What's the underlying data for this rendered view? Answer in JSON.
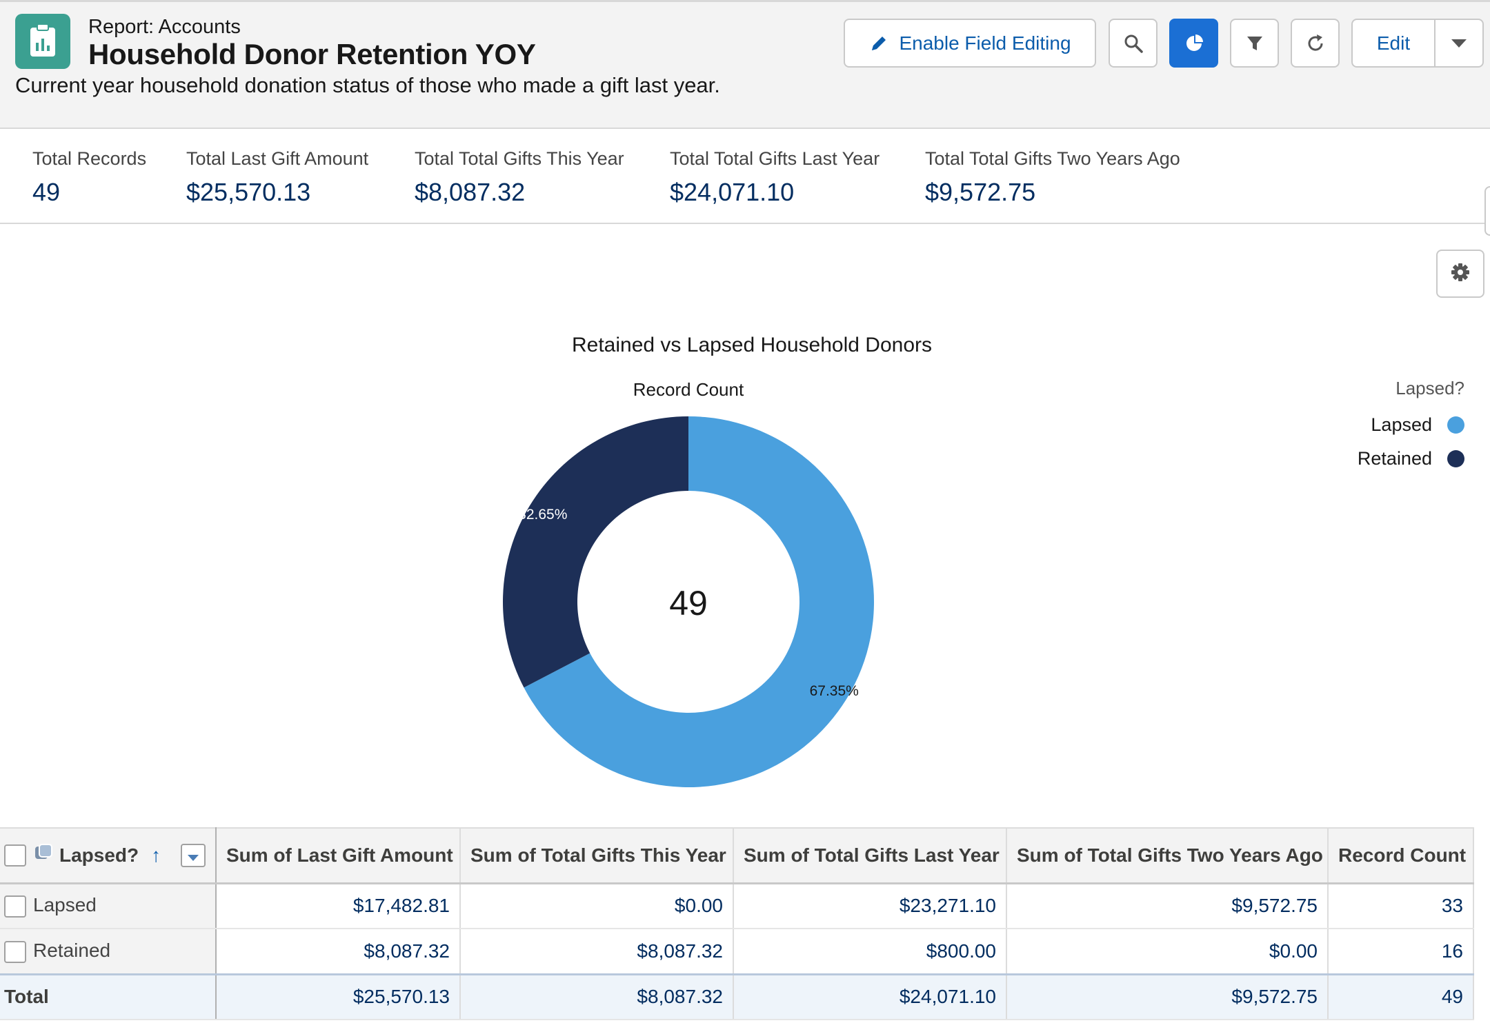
{
  "header": {
    "object_label": "Report: Accounts",
    "title": "Household Donor Retention YOY",
    "description": "Current year household donation status of those who made a gift last year.",
    "buttons": {
      "enable_field_editing": "Enable Field Editing",
      "edit": "Edit"
    },
    "icons": [
      "report-icon",
      "pencil-icon",
      "search-icon",
      "pie-chart-icon",
      "filter-icon",
      "refresh-icon",
      "chevron-down-icon",
      "gear-icon"
    ],
    "accent_color": "#1b6fd4"
  },
  "aggregates": [
    {
      "label": "Total Records",
      "value": "49"
    },
    {
      "label": "Total Last Gift Amount",
      "value": "$25,570.13"
    },
    {
      "label": "Total Total Gifts This Year",
      "value": "$8,087.32"
    },
    {
      "label": "Total Total Gifts Last Year",
      "value": "$24,071.10"
    },
    {
      "label": "Total Total Gifts Two Years Ago",
      "value": "$9,572.75"
    }
  ],
  "chart_data": {
    "type": "pie",
    "title": "Retained vs Lapsed Household Donors",
    "subtitle": "Record Count",
    "center_label": "49",
    "legend_title": "Lapsed?",
    "legend_placement": "right",
    "slices": [
      {
        "name": "Lapsed",
        "value": 33,
        "label": "67.35%",
        "color": "#4aa0de"
      },
      {
        "name": "Retained",
        "value": 16,
        "label": "32.65%",
        "color": "#1d2f57"
      }
    ]
  },
  "table": {
    "columns": [
      "Lapsed?",
      "Sum of Last Gift Amount",
      "Sum of Total Gifts This Year",
      "Sum of Total Gifts Last Year",
      "Sum of Total Gifts Two Years Ago",
      "Record Count"
    ],
    "sort_indicator": "↑",
    "rows": [
      {
        "group": "Lapsed",
        "last_gift": "$17,482.81",
        "this_year": "$0.00",
        "last_year": "$23,271.10",
        "two_years": "$9,572.75",
        "count": "33"
      },
      {
        "group": "Retained",
        "last_gift": "$8,087.32",
        "this_year": "$8,087.32",
        "last_year": "$800.00",
        "two_years": "$0.00",
        "count": "16"
      }
    ],
    "total": {
      "label": "Total",
      "last_gift": "$25,570.13",
      "this_year": "$8,087.32",
      "last_year": "$24,071.10",
      "two_years": "$9,572.75",
      "count": "49"
    }
  }
}
